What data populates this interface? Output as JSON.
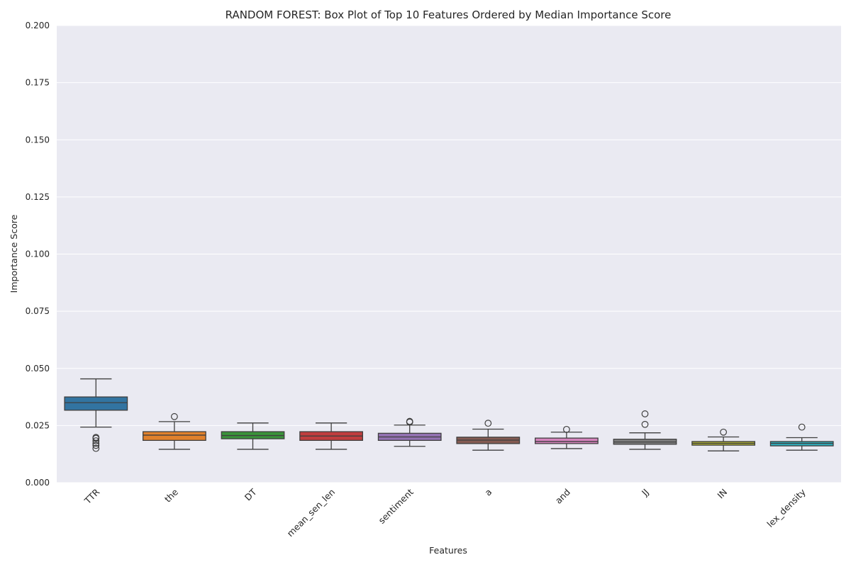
{
  "chart_data": {
    "type": "box",
    "title": "RANDOM FOREST: Box Plot of Top 10 Features Ordered by Median Importance Score",
    "xlabel": "Features",
    "ylabel": "Importance Score",
    "ylim": [
      0,
      0.2
    ],
    "yticks": [
      0.0,
      0.025,
      0.05,
      0.075,
      0.1,
      0.125,
      0.15,
      0.175,
      0.2
    ],
    "ytick_labels": [
      "0.000",
      "0.025",
      "0.050",
      "0.075",
      "0.100",
      "0.125",
      "0.150",
      "0.175",
      "0.200"
    ],
    "grid": true,
    "background": "#eaeaf2",
    "categories": [
      "TTR",
      "the",
      "DT",
      "mean_sen_len",
      "sentiment",
      "a",
      "and",
      "JJ",
      "IN",
      "lex_density"
    ],
    "colors": [
      "#3274a1",
      "#e1812c",
      "#3a923a",
      "#c03d3e",
      "#9372b2",
      "#845b53",
      "#d684bd",
      "#7f7f7f",
      "#a9aa35",
      "#2eaab8"
    ],
    "boxes": [
      {
        "whislo": 0.0243,
        "q1": 0.0317,
        "med": 0.035,
        "q3": 0.0375,
        "whishi": 0.0454,
        "fliers": [
          0.015,
          0.0163,
          0.0172,
          0.0183,
          0.0194,
          0.0198
        ]
      },
      {
        "whislo": 0.0146,
        "q1": 0.0185,
        "med": 0.0208,
        "q3": 0.0223,
        "whishi": 0.0267,
        "fliers": [
          0.0289
        ]
      },
      {
        "whislo": 0.0146,
        "q1": 0.0192,
        "med": 0.0206,
        "q3": 0.0223,
        "whishi": 0.0261,
        "fliers": []
      },
      {
        "whislo": 0.0146,
        "q1": 0.0185,
        "med": 0.0204,
        "q3": 0.0223,
        "whishi": 0.0261,
        "fliers": []
      },
      {
        "whislo": 0.0159,
        "q1": 0.0185,
        "med": 0.02,
        "q3": 0.0216,
        "whishi": 0.0252,
        "fliers": [
          0.0265,
          0.0268
        ]
      },
      {
        "whislo": 0.0142,
        "q1": 0.0171,
        "med": 0.0186,
        "q3": 0.0199,
        "whishi": 0.0234,
        "fliers": [
          0.026
        ]
      },
      {
        "whislo": 0.0149,
        "q1": 0.0171,
        "med": 0.018,
        "q3": 0.0195,
        "whishi": 0.0221,
        "fliers": [
          0.0233
        ]
      },
      {
        "whislo": 0.0146,
        "q1": 0.0168,
        "med": 0.0178,
        "q3": 0.019,
        "whishi": 0.0218,
        "fliers": [
          0.0255,
          0.0301
        ]
      },
      {
        "whislo": 0.0139,
        "q1": 0.0164,
        "med": 0.0172,
        "q3": 0.018,
        "whishi": 0.02,
        "fliers": [
          0.0221
        ]
      },
      {
        "whislo": 0.0142,
        "q1": 0.0161,
        "med": 0.0172,
        "q3": 0.018,
        "whishi": 0.0197,
        "fliers": [
          0.0243
        ]
      }
    ]
  }
}
